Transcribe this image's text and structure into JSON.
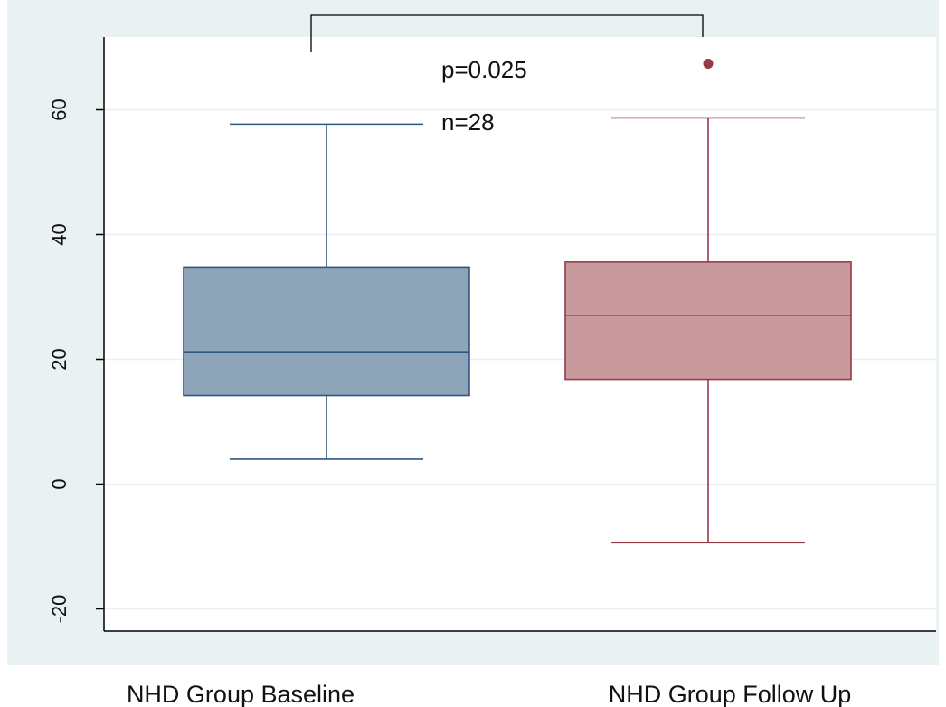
{
  "chart_data": {
    "type": "box",
    "title": "",
    "xlabel": "",
    "ylabel": "",
    "ylim": [
      -24,
      71
    ],
    "yticks": [
      -20,
      0,
      20,
      40,
      60
    ],
    "grid": true,
    "legend": "none",
    "categories": [
      "NHD Group Baseline",
      "NHD Group Follow Up"
    ],
    "boxes": [
      {
        "whisker_low": 4,
        "q1": 14.2,
        "median": 21.2,
        "q3": 34.8,
        "whisker_high": 57.7,
        "outliers": [],
        "fill": "#8ea5b9",
        "stroke": "#2f5682"
      },
      {
        "whisker_low": -9.4,
        "q1": 16.8,
        "median": 27,
        "q3": 35.6,
        "whisker_high": 58.7,
        "outliers": [
          67.4
        ],
        "fill": "#c99a9d",
        "stroke": "#963a48"
      }
    ],
    "annotations": {
      "p_value": "p=0.025",
      "n": "n=28"
    },
    "colors": {
      "outer_background": "#eaf1f3",
      "plot_background": "#ffffff",
      "gridline": "#e9eff2",
      "axis": "#000000"
    }
  }
}
